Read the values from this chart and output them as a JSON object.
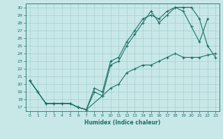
{
  "title": "",
  "xlabel": "Humidex (Indice chaleur)",
  "bg_color": "#c8e8e8",
  "grid_color": "#a8cece",
  "line_color": "#1a7068",
  "spine_color": "#1a7068",
  "xlim": [
    -0.5,
    23.5
  ],
  "ylim": [
    16.5,
    30.5
  ],
  "xticks": [
    0,
    1,
    2,
    3,
    4,
    5,
    6,
    7,
    8,
    9,
    10,
    11,
    12,
    13,
    14,
    15,
    16,
    17,
    18,
    19,
    20,
    21,
    22,
    23
  ],
  "yticks": [
    17,
    18,
    19,
    20,
    21,
    22,
    23,
    24,
    25,
    26,
    27,
    28,
    29,
    30
  ],
  "line1_x": [
    0,
    1,
    2,
    3,
    4,
    5,
    6,
    7,
    8,
    9,
    10,
    11,
    12,
    13,
    14,
    15,
    16,
    17,
    18,
    19,
    20,
    21,
    22,
    23
  ],
  "line1_y": [
    20.5,
    19.0,
    17.5,
    17.5,
    17.5,
    17.5,
    17.0,
    16.7,
    19.5,
    19.0,
    23.0,
    23.5,
    25.5,
    27.0,
    28.5,
    29.0,
    28.5,
    29.5,
    30.0,
    30.0,
    30.0,
    28.5,
    25.0,
    23.5
  ],
  "line2_x": [
    0,
    1,
    2,
    3,
    4,
    5,
    6,
    7,
    8,
    9,
    10,
    11,
    12,
    13,
    14,
    15,
    16,
    17,
    18,
    19,
    20,
    21,
    22
  ],
  "line2_y": [
    20.5,
    19.0,
    17.5,
    17.5,
    17.5,
    17.5,
    17.0,
    16.7,
    19.0,
    18.5,
    22.5,
    23.0,
    25.0,
    26.5,
    28.0,
    29.5,
    28.0,
    29.0,
    30.0,
    29.5,
    27.5,
    25.5,
    28.5
  ],
  "line3_x": [
    0,
    2,
    3,
    4,
    5,
    6,
    7,
    9,
    10,
    11,
    12,
    13,
    14,
    15,
    16,
    17,
    18,
    19,
    20,
    21,
    22,
    23
  ],
  "line3_y": [
    20.5,
    17.5,
    17.5,
    17.5,
    17.5,
    17.0,
    16.7,
    18.5,
    19.5,
    20.0,
    21.5,
    22.0,
    22.5,
    22.5,
    23.0,
    23.5,
    24.0,
    23.5,
    23.5,
    23.5,
    23.8,
    24.0
  ]
}
